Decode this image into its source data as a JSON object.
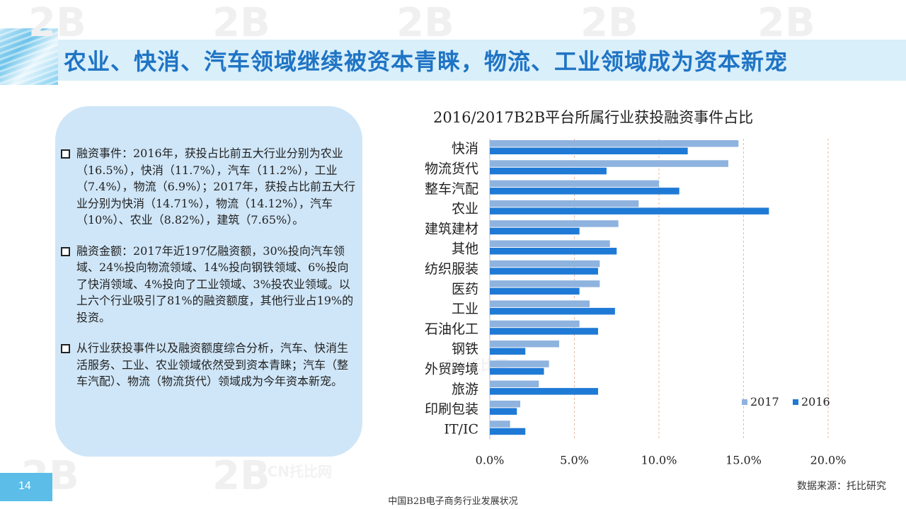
{
  "title": "农业、快消、汽车领域继续被资本青睐，物流、工业领域成为资本新宠",
  "watermark": "2B",
  "watermark_sub": ".CN托比网",
  "bullets": [
    "融资事件：2016年，获投占比前五大行业分别为农业（16.5%），快消（11.7%），汽车（11.2%），工业（7.4%），物流（6.9%）；2017年，获投占比前五大行业分别为快消（14.71%），物流（14.12%），汽车（10%）、农业（8.82%），建筑（7.65%）。",
    "融资金额：2017年近197亿融资额，30%投向汽车领域、24%投向物流领域、14%投向钢铁领域、6%投向了快消领域、4%投向了工业领域、3%投农业领域。以上六个行业吸引了81%的融资额度，其他行业占19%的投资。",
    "从行业获投事件以及融资额度综合分析，汽车、快消生活服务、工业、农业领域依然受到资本青睐；汽车（整车汽配）、物流（物流货代）领域成为今年资本新宠。"
  ],
  "source": "数据来源：托比研究",
  "page_number": "14",
  "footer": "中国B2B电子商务行业发展状况",
  "chart_data": {
    "type": "bar",
    "orientation": "horizontal",
    "title": "2016/2017B2B平台所属行业获投融资事件占比",
    "categories": [
      "快消",
      "物流货代",
      "整车汽配",
      "农业",
      "建筑建材",
      "其他",
      "纺织服装",
      "医药",
      "工业",
      "石油化工",
      "钢铁",
      "外贸跨境",
      "旅游",
      "印刷包装",
      "IT/IC"
    ],
    "series": [
      {
        "name": "2017",
        "color": "#8fb3df",
        "values": [
          14.7,
          14.1,
          10.0,
          8.8,
          7.6,
          7.1,
          6.5,
          6.5,
          5.9,
          5.3,
          4.1,
          3.5,
          2.9,
          1.8,
          1.2
        ]
      },
      {
        "name": "2016",
        "color": "#1f7ad6",
        "values": [
          11.7,
          6.9,
          11.2,
          16.5,
          5.3,
          7.5,
          6.4,
          5.3,
          7.4,
          6.4,
          2.1,
          3.2,
          6.4,
          1.6,
          2.1
        ]
      }
    ],
    "xlim": [
      0,
      20
    ],
    "xticks": [
      "0.0%",
      "5.0%",
      "10.0%",
      "15.0%",
      "20.0%"
    ],
    "grid": true,
    "legend": "bottom-right"
  }
}
